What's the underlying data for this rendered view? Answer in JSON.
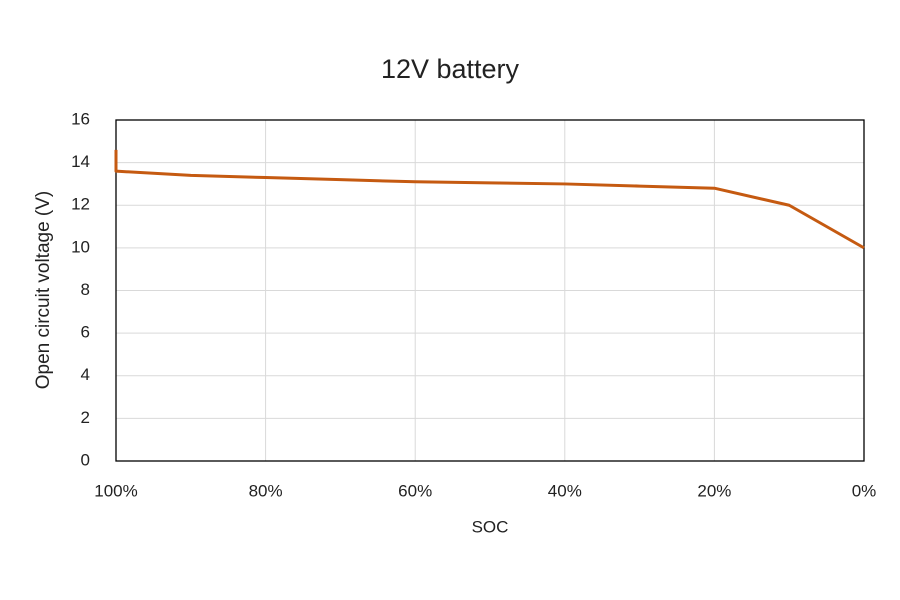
{
  "chart_data": {
    "type": "line",
    "title": "12V battery",
    "x_label": "SOC",
    "y_label": "Open circuit voltage (V)",
    "x": [
      100,
      100,
      90,
      80,
      70,
      60,
      50,
      40,
      30,
      20,
      10,
      0
    ],
    "series": [
      {
        "name": "12V battery",
        "color": "#c55a11",
        "values": [
          14.6,
          13.6,
          13.4,
          13.3,
          13.2,
          13.1,
          13.05,
          13.0,
          12.9,
          12.8,
          12.0,
          10.0
        ]
      }
    ],
    "xlim": [
      100,
      0
    ],
    "xticks": [
      {
        "value": 100,
        "label": "100%"
      },
      {
        "value": 80,
        "label": "80%"
      },
      {
        "value": 60,
        "label": "60%"
      },
      {
        "value": 40,
        "label": "40%"
      },
      {
        "value": 20,
        "label": "20%"
      },
      {
        "value": 0,
        "label": "0%"
      }
    ],
    "ylim": [
      0,
      16
    ],
    "yticks": [
      0,
      2,
      4,
      6,
      8,
      10,
      12,
      14,
      16
    ],
    "grid": true
  }
}
